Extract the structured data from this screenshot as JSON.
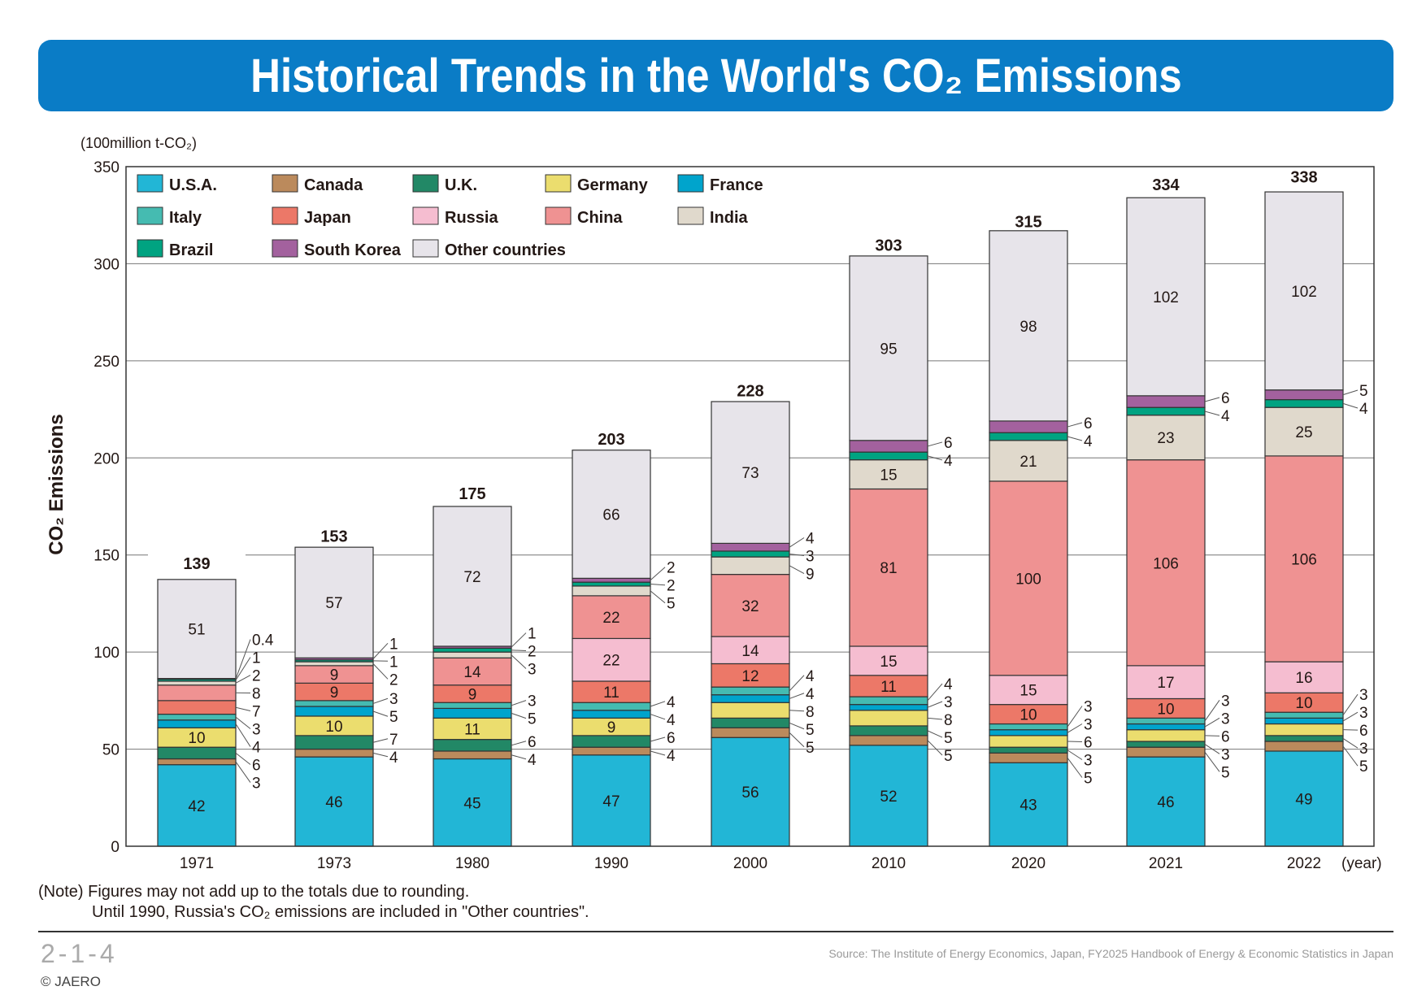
{
  "title": "Historical Trends in the World's CO₂ Emissions",
  "chart_data": {
    "type": "bar",
    "stacked": true,
    "title": "Historical Trends in the World's CO₂ Emissions",
    "unit_label": "(100million t-CO₂)",
    "ylabel": "CO₂ Emissions",
    "xlabel": "(year)",
    "ylim": [
      0,
      350
    ],
    "yticks": [
      0,
      50,
      100,
      150,
      200,
      250,
      300,
      350
    ],
    "grid": true,
    "legend_placement": "top-left",
    "categories": [
      "1971",
      "1973",
      "1980",
      "1990",
      "2000",
      "2010",
      "2020",
      "2021",
      "2022"
    ],
    "totals": [
      139,
      153,
      175,
      203,
      228,
      303,
      315,
      334,
      338
    ],
    "series": [
      {
        "name": "U.S.A.",
        "color": "#22b6d6",
        "values": [
          42,
          46,
          45,
          47,
          56,
          52,
          43,
          46,
          49
        ]
      },
      {
        "name": "Canada",
        "color": "#bb8a5c",
        "values": [
          3,
          4,
          4,
          4,
          5,
          5,
          5,
          5,
          5
        ]
      },
      {
        "name": "U.K.",
        "color": "#228866",
        "values": [
          6,
          7,
          6,
          6,
          5,
          5,
          3,
          3,
          3
        ]
      },
      {
        "name": "Germany",
        "color": "#ebdd6e",
        "values": [
          10,
          10,
          11,
          9,
          8,
          8,
          6,
          6,
          6
        ]
      },
      {
        "name": "France",
        "color": "#00a4cc",
        "values": [
          4,
          5,
          5,
          4,
          4,
          3,
          3,
          3,
          3
        ]
      },
      {
        "name": "Italy",
        "color": "#45bbb1",
        "values": [
          3,
          3,
          3,
          4,
          4,
          4,
          3,
          3,
          3
        ]
      },
      {
        "name": "Japan",
        "color": "#ec7868",
        "values": [
          7,
          9,
          9,
          11,
          12,
          11,
          10,
          10,
          10
        ]
      },
      {
        "name": "Russia",
        "color": "#f5bdd0",
        "values": [
          null,
          null,
          null,
          22,
          14,
          15,
          15,
          17,
          16
        ]
      },
      {
        "name": "China",
        "color": "#ef9292",
        "values": [
          8,
          9,
          14,
          22,
          32,
          81,
          100,
          106,
          106
        ]
      },
      {
        "name": "India",
        "color": "#e0d9cc",
        "values": [
          2,
          2,
          3,
          5,
          9,
          15,
          21,
          23,
          25
        ]
      },
      {
        "name": "Brazil",
        "color": "#00a381",
        "values": [
          1,
          1,
          2,
          2,
          3,
          4,
          4,
          4,
          4
        ]
      },
      {
        "name": "South Korea",
        "color": "#a3619e",
        "values": [
          0.4,
          1,
          1,
          2,
          4,
          6,
          6,
          6,
          5
        ]
      },
      {
        "name": "Other countries",
        "color": "#e7e4ea",
        "values": [
          51,
          57,
          72,
          66,
          73,
          95,
          98,
          102,
          102
        ]
      }
    ]
  },
  "notes": {
    "line1": "(Note) Figures may not add up to the totals due to rounding.",
    "line2": "Until 1990, Russia's CO₂ emissions are included in \"Other countries\"."
  },
  "footer": {
    "figure_number": "2-1-4",
    "source": "Source: The Institute of Energy Economics, Japan, FY2025 Handbook of Energy & Economic Statistics in Japan",
    "copyright": "© JAERO"
  }
}
